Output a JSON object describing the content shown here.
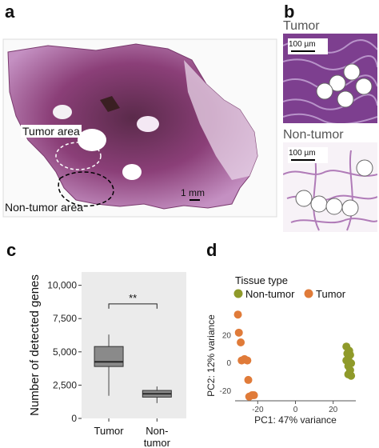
{
  "panels": {
    "a": {
      "letter": "a",
      "tumor_label": "Tumor area",
      "nontumor_label": "Non-tumor area",
      "scalebar_label": "1 mm"
    },
    "b": {
      "letter": "b",
      "tumor_title": "Tumor",
      "tumor_scale": "100 µm",
      "nontumor_title": "Non-tumor",
      "nontumor_scale": "100 µm"
    },
    "c": {
      "letter": "c",
      "significance": "**"
    },
    "d": {
      "letter": "d",
      "legend_title": "Tissue type",
      "legend_items": [
        "Non-tumor",
        "Tumor"
      ]
    }
  },
  "chart_data": [
    {
      "type": "box",
      "ylabel": "Number of detected genes",
      "ylim": [
        0,
        11000
      ],
      "yticks": [
        "0",
        "2,500",
        "5,000",
        "7,500",
        "10,000"
      ],
      "ytick_values": [
        0,
        2500,
        5000,
        7500,
        10000
      ],
      "categories": [
        "Tumor",
        "Non-tumor"
      ],
      "category_lines": [
        [
          "Tumor"
        ],
        [
          "Non-",
          "tumor"
        ]
      ],
      "boxes": [
        {
          "name": "Tumor",
          "min": 1700,
          "q1": 3900,
          "median": 4250,
          "q3": 5400,
          "max": 6300
        },
        {
          "name": "Non-tumor",
          "min": 1150,
          "q1": 1600,
          "median": 1850,
          "q3": 2100,
          "max": 2400
        }
      ],
      "colors": {
        "box": "#8a8a8a",
        "median": "#222222",
        "panel_bg": "#ebebeb"
      }
    },
    {
      "type": "scatter",
      "xlabel": "PC1: 47% variance",
      "ylabel": "PC2: 12% variance",
      "xlim": [
        -32,
        32
      ],
      "ylim": [
        -27,
        38
      ],
      "xticks": [
        -20,
        0,
        20
      ],
      "yticks": [
        -20,
        0,
        20
      ],
      "series": [
        {
          "name": "Non-tumor",
          "color": "#8f9a2a",
          "points": [
            [
              27,
              12
            ],
            [
              28.5,
              9
            ],
            [
              27.5,
              7
            ],
            [
              29,
              6
            ],
            [
              28,
              4
            ],
            [
              27,
              2
            ],
            [
              28.5,
              1
            ],
            [
              29.5,
              0
            ],
            [
              28,
              -2
            ],
            [
              29,
              -5
            ],
            [
              28,
              -8
            ],
            [
              29.5,
              -9
            ]
          ]
        },
        {
          "name": "Tumor",
          "color": "#e07b39",
          "points": [
            [
              -30.5,
              35
            ],
            [
              -30,
              22
            ],
            [
              -29,
              15
            ],
            [
              -28.5,
              2
            ],
            [
              -27,
              3
            ],
            [
              -25.5,
              2
            ],
            [
              -25,
              -12
            ],
            [
              -24.5,
              -24
            ],
            [
              -23,
              -23
            ],
            [
              -22,
              -23
            ]
          ]
        }
      ]
    }
  ]
}
